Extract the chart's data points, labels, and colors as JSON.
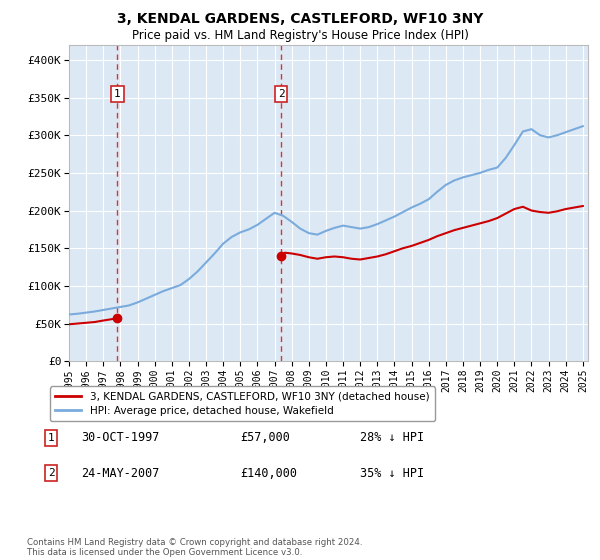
{
  "title": "3, KENDAL GARDENS, CASTLEFORD, WF10 3NY",
  "subtitle": "Price paid vs. HM Land Registry's House Price Index (HPI)",
  "plot_bg_color": "#dce9f5",
  "legend_label_red": "3, KENDAL GARDENS, CASTLEFORD, WF10 3NY (detached house)",
  "legend_label_blue": "HPI: Average price, detached house, Wakefield",
  "annotation1": {
    "label": "1",
    "date": "30-OCT-1997",
    "price": "£57,000",
    "note": "28% ↓ HPI"
  },
  "annotation2": {
    "label": "2",
    "date": "24-MAY-2007",
    "price": "£140,000",
    "note": "35% ↓ HPI"
  },
  "footer": "Contains HM Land Registry data © Crown copyright and database right 2024.\nThis data is licensed under the Open Government Licence v3.0.",
  "ylim": [
    0,
    420000
  ],
  "yticks": [
    0,
    50000,
    100000,
    150000,
    200000,
    250000,
    300000,
    350000,
    400000
  ],
  "ytick_labels": [
    "£0",
    "£50K",
    "£100K",
    "£150K",
    "£200K",
    "£250K",
    "£300K",
    "£350K",
    "£400K"
  ],
  "hpi_color": "#7aabdc",
  "price_color": "#cc0000",
  "marker_color": "#cc0000",
  "vline_color": "#dd3333",
  "box_color": "#cc2222",
  "sale1_x": 1997.83,
  "sale1_y": 57000,
  "sale2_x": 2007.39,
  "sale2_y": 140000,
  "xlim": [
    1995,
    2025.3
  ],
  "xticks": [
    1995,
    1996,
    1997,
    1998,
    1999,
    2000,
    2001,
    2002,
    2003,
    2004,
    2005,
    2006,
    2007,
    2008,
    2009,
    2010,
    2011,
    2012,
    2013,
    2014,
    2015,
    2016,
    2017,
    2018,
    2019,
    2020,
    2021,
    2022,
    2023,
    2024,
    2025
  ],
  "hpi_years": [
    1995,
    1995.5,
    1996,
    1996.5,
    1997,
    1997.5,
    1998,
    1998.5,
    1999,
    1999.5,
    2000,
    2000.5,
    2001,
    2001.5,
    2002,
    2002.5,
    2003,
    2003.5,
    2004,
    2004.5,
    2005,
    2005.5,
    2006,
    2006.5,
    2007,
    2007.5,
    2008,
    2008.5,
    2009,
    2009.5,
    2010,
    2010.5,
    2011,
    2011.5,
    2012,
    2012.5,
    2013,
    2013.5,
    2014,
    2014.5,
    2015,
    2015.5,
    2016,
    2016.5,
    2017,
    2017.5,
    2018,
    2018.5,
    2019,
    2019.5,
    2020,
    2020.5,
    2021,
    2021.5,
    2022,
    2022.5,
    2023,
    2023.5,
    2024,
    2024.5,
    2025
  ],
  "hpi_values": [
    62000,
    63000,
    64500,
    66000,
    68000,
    70000,
    72000,
    74000,
    78000,
    83000,
    88000,
    93000,
    97000,
    101000,
    109000,
    119000,
    131000,
    143000,
    156000,
    165000,
    171000,
    175000,
    181000,
    189000,
    197000,
    193000,
    185000,
    176000,
    170000,
    168000,
    173000,
    177000,
    180000,
    178000,
    176000,
    178000,
    182000,
    187000,
    192000,
    198000,
    204000,
    209000,
    215000,
    225000,
    234000,
    240000,
    244000,
    247000,
    250000,
    254000,
    257000,
    270000,
    287000,
    305000,
    308000,
    300000,
    297000,
    300000,
    304000,
    308000,
    312000
  ],
  "red_years_seg1": [
    1995,
    1995.5,
    1996,
    1996.5,
    1997,
    1997.83
  ],
  "red_values_seg1": [
    49000,
    50000,
    51000,
    52000,
    54000,
    57000
  ],
  "red_years_seg2": [
    2007.39,
    2007.6,
    2008,
    2008.5,
    2009,
    2009.5,
    2010,
    2010.5,
    2011,
    2011.5,
    2012,
    2012.5,
    2013,
    2013.5,
    2014,
    2014.5,
    2015,
    2015.5,
    2016,
    2016.5,
    2017,
    2017.5,
    2018,
    2018.5,
    2019,
    2019.5,
    2020,
    2020.5,
    2021,
    2021.5,
    2022,
    2022.5,
    2023,
    2023.5,
    2024,
    2024.5,
    2025
  ],
  "red_values_seg2": [
    140000,
    144000,
    143000,
    141000,
    138000,
    136000,
    138000,
    139000,
    138000,
    136000,
    135000,
    137000,
    139000,
    142000,
    146000,
    150000,
    153000,
    157000,
    161000,
    166000,
    170000,
    174000,
    177000,
    180000,
    183000,
    186000,
    190000,
    196000,
    202000,
    205000,
    200000,
    198000,
    197000,
    199000,
    202000,
    204000,
    206000
  ]
}
